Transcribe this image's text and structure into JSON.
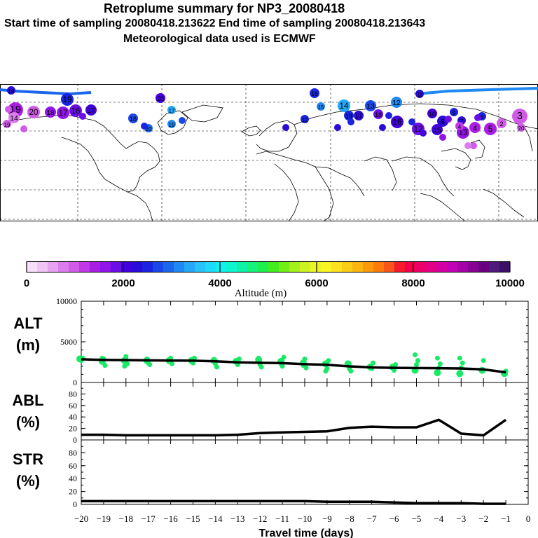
{
  "header": {
    "title": "Retroplume summary for NP3_20080418",
    "sampling_line": "Start time of sampling 20080418.213622     End time of sampling 20080418.213643",
    "met_line": "Meteorological data used is ECMWF"
  },
  "map": {
    "description_markers": "plume centroid positions by day (1-20), colored by altitude",
    "day_labels": [
      "19",
      "19",
      "19",
      "20",
      "18",
      "17",
      "16",
      "17",
      "18",
      "20",
      "19",
      "20",
      "17",
      "16",
      "15",
      "14",
      "13",
      "12",
      "11",
      "10",
      "9",
      "8",
      "7",
      "6",
      "5",
      "4",
      "3",
      "2",
      "1",
      "19",
      "17",
      "18",
      "16",
      "12",
      "15",
      "13",
      "11",
      "20",
      "14",
      "19",
      "17",
      "16",
      "15",
      "14",
      "13",
      "12",
      "11",
      "10",
      "9",
      "8",
      "7",
      "6",
      "5",
      "4",
      "3",
      "2",
      "1"
    ]
  },
  "colorbar": {
    "title": "Altitude (m)",
    "ticks": [
      "0",
      "2000",
      "4000",
      "6000",
      "8000",
      "10000"
    ],
    "colors": [
      "#f6dff8",
      "#f0c4f5",
      "#e7a1f1",
      "#dc7ded",
      "#d15be9",
      "#c238e6",
      "#a91ee3",
      "#9114e8",
      "#6b0ee4",
      "#4300de",
      "#2a0bd8",
      "#1a24e0",
      "#1a48e8",
      "#1c66ec",
      "#1f88f2",
      "#26a6f6",
      "#27c3f8",
      "#1ddbf8",
      "#0ff1f1",
      "#0df5d0",
      "#0ef2a8",
      "#14f27a",
      "#1eef4e",
      "#43ee1c",
      "#72ef17",
      "#a4f01a",
      "#cdf220",
      "#eef525",
      "#fbf425",
      "#fbe11e",
      "#fbcc16",
      "#fbb510",
      "#fb990d",
      "#fb7c0d",
      "#f9551a",
      "#f51b2b",
      "#f2004c",
      "#eb0068",
      "#e10086",
      "#d400a1",
      "#c200b5",
      "#a600a8",
      "#890094",
      "#680080",
      "#4f1a7a",
      "#3c0f67"
    ]
  },
  "chart_data": [
    {
      "type": "line",
      "panel": "ALT",
      "ylabel": "ALT\n(m)",
      "ylabel_lines": [
        "ALT",
        "(m)"
      ],
      "ylim": [
        0,
        10000
      ],
      "yticks": [
        "0",
        "5000",
        "10000"
      ],
      "x": [
        -20,
        -19,
        -18,
        -17,
        -16,
        -15,
        -14,
        -13,
        -12,
        -11,
        -10,
        -9,
        -8,
        -7,
        -6,
        -5,
        -4,
        -3,
        -2,
        -1
      ],
      "values": [
        2850,
        2780,
        2760,
        2720,
        2700,
        2680,
        2600,
        2470,
        2420,
        2380,
        2250,
        2180,
        1980,
        1850,
        1800,
        1780,
        1760,
        1720,
        1600,
        1250
      ],
      "scatter_note": "green dots = individual plume cluster altitudes",
      "scatter": [
        {
          "x": -20,
          "y": [
            2900,
            2700,
            3000
          ]
        },
        {
          "x": -19,
          "y": [
            2600,
            2900,
            2100,
            3000
          ]
        },
        {
          "x": -18,
          "y": [
            2700,
            3200,
            2300,
            2000,
            3100
          ]
        },
        {
          "x": -17,
          "y": [
            2700,
            2400,
            2200,
            2900
          ]
        },
        {
          "x": -16,
          "y": [
            2700,
            3000,
            2300
          ]
        },
        {
          "x": -15,
          "y": [
            2700,
            2400,
            3000
          ]
        },
        {
          "x": -14,
          "y": [
            2700,
            2300,
            1900,
            2800
          ]
        },
        {
          "x": -13,
          "y": [
            2600,
            2200,
            2900
          ]
        },
        {
          "x": -12,
          "y": [
            2800,
            2200,
            1900,
            3000
          ]
        },
        {
          "x": -11,
          "y": [
            2600,
            2000,
            3100,
            2300
          ]
        },
        {
          "x": -10,
          "y": [
            2400,
            2900,
            1800,
            2100
          ]
        },
        {
          "x": -9,
          "y": [
            2300,
            1700,
            2700,
            1400
          ]
        },
        {
          "x": -8,
          "y": [
            2300,
            1700,
            1400
          ]
        },
        {
          "x": -7,
          "y": [
            1900,
            1700,
            2400
          ]
        },
        {
          "x": -6,
          "y": [
            1900,
            1500,
            2200
          ]
        },
        {
          "x": -5,
          "y": [
            1500,
            2200,
            2700,
            3400
          ]
        },
        {
          "x": -4,
          "y": [
            1200,
            1800,
            2300,
            3000
          ]
        },
        {
          "x": -3,
          "y": [
            1100,
            1800,
            2400,
            3000
          ]
        },
        {
          "x": -2,
          "y": [
            1500,
            2700
          ]
        },
        {
          "x": -1,
          "y": [
            1100,
            1400
          ]
        }
      ]
    },
    {
      "type": "line",
      "panel": "ABL",
      "ylabel_lines": [
        "ABL",
        "(%)"
      ],
      "ylim": [
        0,
        100
      ],
      "yticks": [
        "0",
        "20",
        "40",
        "60",
        "80"
      ],
      "x": [
        -20,
        -19,
        -18,
        -17,
        -16,
        -15,
        -14,
        -13,
        -12,
        -11,
        -10,
        -9,
        -8,
        -7,
        -6,
        -5,
        -4,
        -3,
        -2,
        -1
      ],
      "values": [
        9,
        9,
        8,
        8,
        8,
        8,
        8,
        9,
        12,
        13,
        14,
        15,
        21,
        23,
        22,
        22,
        35,
        11,
        8,
        35
      ]
    },
    {
      "type": "line",
      "panel": "STR",
      "ylabel_lines": [
        "STR",
        "(%)"
      ],
      "ylim": [
        0,
        100
      ],
      "yticks": [
        "0",
        "20",
        "40",
        "60",
        "80"
      ],
      "x": [
        -20,
        -19,
        -18,
        -17,
        -16,
        -15,
        -14,
        -13,
        -12,
        -11,
        -10,
        -9,
        -8,
        -7,
        -6,
        -5,
        -4,
        -3,
        -2,
        -1
      ],
      "values": [
        5,
        5,
        5,
        5,
        5,
        5,
        5,
        5,
        5,
        5,
        5,
        4,
        4,
        4,
        3,
        2,
        2,
        2,
        1,
        1
      ]
    }
  ],
  "xaxis": {
    "title": "Travel time (days)",
    "ticks": [
      "−20",
      "−19",
      "−18",
      "−17",
      "−16",
      "−15",
      "−14",
      "−13",
      "−12",
      "−11",
      "−10",
      "−9",
      "−8",
      "−7",
      "−6",
      "−5",
      "−4",
      "−3",
      "−2",
      "−1",
      "0"
    ]
  }
}
